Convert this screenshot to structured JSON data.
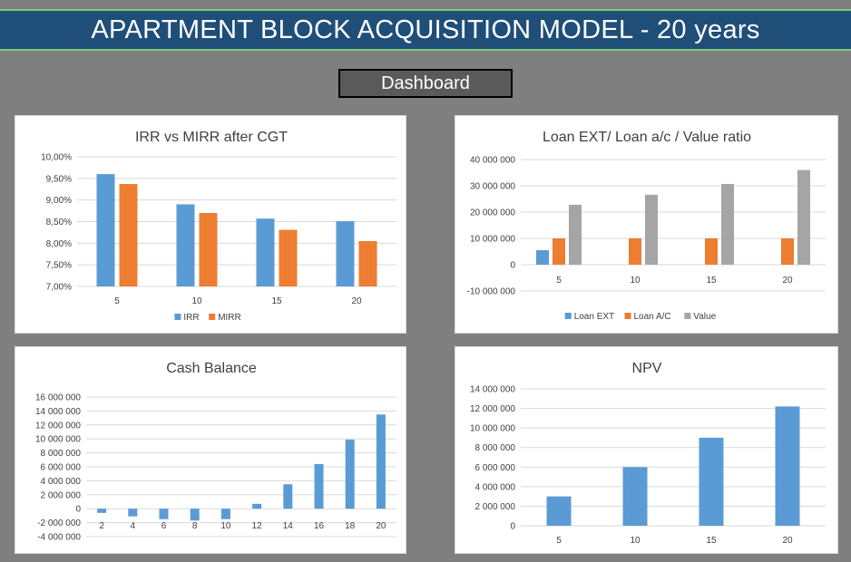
{
  "header": {
    "title": "APARTMENT BLOCK ACQUISITION MODEL - 20 years"
  },
  "nav": {
    "dashboard_label": "Dashboard"
  },
  "colors": {
    "blue": "#5b9bd5",
    "orange": "#ed7d31",
    "gray": "#a5a5a5",
    "banner": "#1f4e79"
  },
  "chart_data": [
    {
      "id": "irr",
      "type": "bar",
      "title": "IRR vs MIRR after CGT",
      "categories": [
        "5",
        "10",
        "15",
        "20"
      ],
      "series": [
        {
          "name": "IRR",
          "color": "#5b9bd5",
          "values": [
            9.6,
            8.9,
            8.57,
            8.51
          ]
        },
        {
          "name": "MIRR",
          "color": "#ed7d31",
          "values": [
            9.37,
            8.7,
            8.31,
            8.05
          ]
        }
      ],
      "ylim": [
        7.0,
        10.0
      ],
      "yticks": [
        "7,00%",
        "7,50%",
        "8,00%",
        "8,50%",
        "9,00%",
        "9,50%",
        "10,00%"
      ],
      "grid": true,
      "legend": "bottom"
    },
    {
      "id": "loan",
      "type": "bar",
      "title": "Loan EXT/ Loan a/c / Value ratio",
      "categories": [
        "5",
        "10",
        "15",
        "20"
      ],
      "series": [
        {
          "name": "Loan EXT",
          "color": "#5b9bd5",
          "values": [
            5500000,
            0,
            0,
            0
          ]
        },
        {
          "name": "Loan A/C",
          "color": "#ed7d31",
          "values": [
            10000000,
            10000000,
            10000000,
            10000000
          ]
        },
        {
          "name": "Value",
          "color": "#a5a5a5",
          "values": [
            22800000,
            26600000,
            30700000,
            36000000
          ]
        }
      ],
      "ylim": [
        -10000000,
        40000000
      ],
      "yticks": [
        "-10 000 000",
        "0",
        "10 000 000",
        "20 000 000",
        "30 000 000",
        "40 000 000"
      ],
      "grid": true,
      "legend": "bottom"
    },
    {
      "id": "cash",
      "type": "bar",
      "title": "Cash Balance",
      "categories": [
        "2",
        "4",
        "6",
        "8",
        "10",
        "12",
        "14",
        "16",
        "18",
        "20"
      ],
      "series": [
        {
          "name": "Cash Balance",
          "color": "#5b9bd5",
          "values": [
            -600000,
            -1100000,
            -1500000,
            -1700000,
            -1500000,
            700000,
            3500000,
            6400000,
            9900000,
            13500000
          ]
        }
      ],
      "ylim": [
        -4000000,
        16000000
      ],
      "yticks": [
        "-4 000 000",
        "-2 000 000",
        "0",
        "2 000 000",
        "4 000 000",
        "6 000 000",
        "8 000 000",
        "10 000 000",
        "12 000 000",
        "14 000 000",
        "16 000 000"
      ],
      "grid": true,
      "legend": "none"
    },
    {
      "id": "npv",
      "type": "bar",
      "title": "NPV",
      "categories": [
        "5",
        "10",
        "15",
        "20"
      ],
      "series": [
        {
          "name": "NPV",
          "color": "#5b9bd5",
          "values": [
            3000000,
            6000000,
            9000000,
            12200000
          ]
        }
      ],
      "ylim": [
        0,
        14000000
      ],
      "yticks": [
        "0",
        "2 000 000",
        "4 000 000",
        "6 000 000",
        "8 000 000",
        "10 000 000",
        "12 000 000",
        "14 000 000"
      ],
      "grid": true,
      "legend": "none"
    }
  ]
}
